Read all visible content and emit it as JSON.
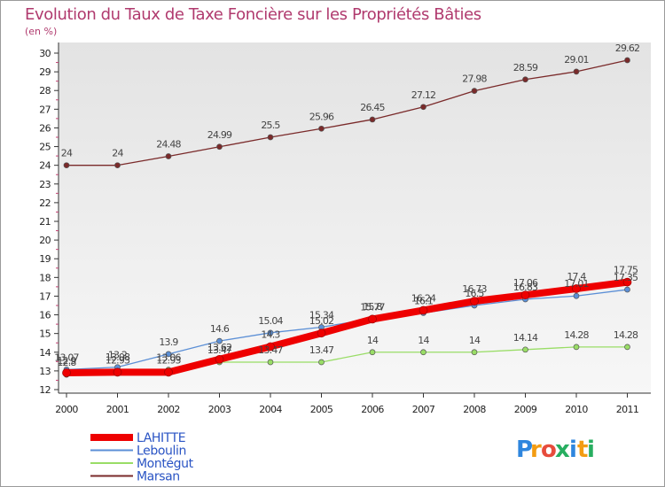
{
  "chart_data": {
    "type": "line",
    "title": "Evolution du Taux de Taxe Foncière sur les Propriétés Bâties",
    "subtitle": "(en %)",
    "xlabel": "",
    "ylabel": "",
    "categories": [
      "2000",
      "2001",
      "2002",
      "2003",
      "2004",
      "2005",
      "2006",
      "2007",
      "2008",
      "2009",
      "2010",
      "2011"
    ],
    "ylim": [
      12,
      30
    ],
    "yticks": [
      12,
      13,
      14,
      15,
      16,
      17,
      18,
      19,
      20,
      21,
      22,
      23,
      24,
      25,
      26,
      27,
      28,
      29,
      30
    ],
    "grid": false,
    "legend": "bottom-left",
    "series": [
      {
        "name": "LAHITTE",
        "color": "#ee0000",
        "values": [
          12.9,
          12.93,
          12.93,
          13.62,
          14.3,
          15.02,
          15.77,
          16.24,
          16.73,
          17.06,
          17.4,
          17.75
        ],
        "labels": [
          "12.9",
          "12.93",
          "12.93",
          "13.62",
          "14.3",
          "15.02",
          "15.77",
          "16.24",
          "16.73",
          "17.06",
          "17.4",
          "17.75"
        ]
      },
      {
        "name": "Leboulin",
        "color": "#5b8fd6",
        "values": [
          13.07,
          13.2,
          13.9,
          14.6,
          15.04,
          15.34,
          15.8,
          16.1,
          16.5,
          16.83,
          17.01,
          17.35
        ],
        "labels": [
          "13.07",
          "13.2",
          "13.9",
          "14.6",
          "15.04",
          "15.34",
          "15.8",
          "16.1",
          "16.5",
          "16.83",
          "17.01",
          "17.35"
        ]
      },
      {
        "name": "Montégut",
        "color": "#99dd66",
        "values": [
          12.8,
          13.08,
          13.06,
          13.47,
          13.47,
          13.47,
          14.0,
          14.0,
          14.0,
          14.14,
          14.28,
          14.28
        ],
        "labels": [
          "12.8",
          "13.08",
          "13.06",
          "13.47",
          "13.47",
          "13.47",
          "14",
          "14",
          "14",
          "14.14",
          "14.28",
          "14.28"
        ]
      },
      {
        "name": "Marsan",
        "color": "#7a2a2a",
        "values": [
          24.0,
          24.0,
          24.48,
          24.99,
          25.5,
          25.96,
          26.45,
          27.12,
          27.98,
          28.59,
          29.01,
          29.62
        ],
        "labels": [
          "24",
          "24",
          "24.48",
          "24.99",
          "25.5",
          "25.96",
          "26.45",
          "27.12",
          "27.98",
          "28.59",
          "29.01",
          "29.62"
        ]
      }
    ]
  },
  "logo": {
    "letters": [
      "P",
      "r",
      "o",
      "x",
      "i",
      "t",
      "i"
    ],
    "colors": [
      "#2e86de",
      "#f39c12",
      "#e74c3c",
      "#27ae60",
      "#2e86de",
      "#f39c12",
      "#27ae60"
    ]
  }
}
